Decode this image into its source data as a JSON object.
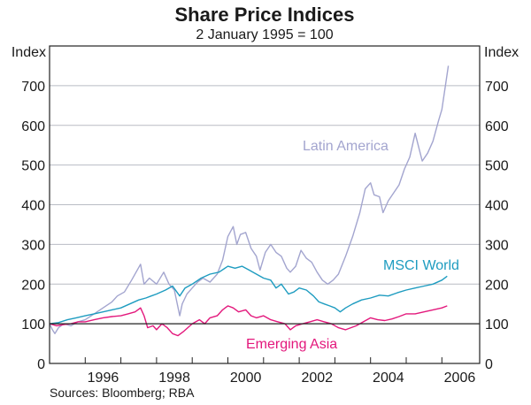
{
  "chart_data": {
    "type": "line",
    "title": "Share Price Indices",
    "subtitle": "2 January 1995 = 100",
    "ylabel_left": "Index",
    "ylabel_right": "Index",
    "xlabel": "",
    "ylim": [
      0,
      800
    ],
    "xlim": [
      1995.0,
      2006.6
    ],
    "yticks": [
      0,
      100,
      200,
      300,
      400,
      500,
      600,
      700
    ],
    "ytick_labels": [
      "0",
      "100",
      "200",
      "300",
      "400",
      "500",
      "600",
      "700"
    ],
    "xtick_positions": [
      1996,
      1997,
      1998,
      1999,
      2000,
      2001,
      2002,
      2003,
      2004,
      2005,
      2006
    ],
    "xtick_labels": [
      {
        "label": "1996",
        "at": 1996.5
      },
      {
        "label": "1998",
        "at": 1998.5
      },
      {
        "label": "2000",
        "at": 2000.5
      },
      {
        "label": "2002",
        "at": 2002.5
      },
      {
        "label": "2004",
        "at": 2004.5
      },
      {
        "label": "2006",
        "at": 2006.5
      }
    ],
    "grid": true,
    "reference_line": 100,
    "source": "Sources: Bloomberg; RBA",
    "series": [
      {
        "name": "Latin America",
        "color": "#a3a5cf",
        "x": [
          1995.0,
          1995.08,
          1995.15,
          1995.25,
          1995.4,
          1995.6,
          1995.8,
          1996.0,
          1996.25,
          1996.5,
          1996.75,
          1996.9,
          1997.1,
          1997.3,
          1997.55,
          1997.65,
          1997.8,
          1998.0,
          1998.2,
          1998.35,
          1998.5,
          1998.65,
          1998.72,
          1998.85,
          1999.0,
          1999.15,
          1999.3,
          1999.5,
          1999.7,
          1999.85,
          2000.0,
          2000.15,
          2000.25,
          2000.35,
          2000.5,
          2000.65,
          2000.8,
          2000.9,
          2001.05,
          2001.2,
          2001.35,
          2001.5,
          2001.65,
          2001.75,
          2001.9,
          2002.05,
          2002.2,
          2002.35,
          2002.5,
          2002.65,
          2002.8,
          2002.95,
          2003.1,
          2003.3,
          2003.5,
          2003.7,
          2003.85,
          2004.0,
          2004.1,
          2004.25,
          2004.35,
          2004.5,
          2004.65,
          2004.8,
          2004.95,
          2005.1,
          2005.25,
          2005.35,
          2005.45,
          2005.6,
          2005.75,
          2005.9,
          2006.0,
          2006.1,
          2006.18
        ],
        "values": [
          100,
          85,
          75,
          90,
          100,
          95,
          105,
          110,
          125,
          140,
          155,
          170,
          180,
          210,
          250,
          200,
          215,
          200,
          230,
          200,
          185,
          120,
          150,
          175,
          190,
          205,
          215,
          205,
          225,
          260,
          320,
          345,
          300,
          325,
          330,
          290,
          270,
          235,
          280,
          300,
          280,
          270,
          240,
          230,
          245,
          285,
          265,
          255,
          230,
          210,
          200,
          210,
          225,
          270,
          320,
          380,
          440,
          455,
          425,
          420,
          380,
          410,
          430,
          450,
          490,
          520,
          580,
          545,
          510,
          530,
          560,
          610,
          640,
          700,
          750
        ]
      },
      {
        "name": "MSCI World",
        "color": "#1e9cc0",
        "x": [
          1995.0,
          1995.25,
          1995.5,
          1995.75,
          1996.0,
          1996.25,
          1996.5,
          1996.75,
          1997.0,
          1997.25,
          1997.5,
          1997.7,
          1997.85,
          1998.0,
          1998.25,
          1998.45,
          1998.65,
          1998.8,
          1999.0,
          1999.25,
          1999.5,
          1999.75,
          2000.0,
          2000.2,
          2000.4,
          2000.6,
          2000.8,
          2001.0,
          2001.2,
          2001.35,
          2001.5,
          2001.7,
          2001.85,
          2002.0,
          2002.2,
          2002.4,
          2002.55,
          2002.7,
          2002.85,
          2003.0,
          2003.15,
          2003.3,
          2003.5,
          2003.75,
          2004.0,
          2004.25,
          2004.5,
          2004.75,
          2005.0,
          2005.25,
          2005.5,
          2005.75,
          2006.0,
          2006.15
        ],
        "values": [
          100,
          103,
          110,
          115,
          120,
          125,
          130,
          135,
          140,
          150,
          160,
          165,
          170,
          175,
          185,
          195,
          170,
          190,
          200,
          215,
          225,
          230,
          245,
          240,
          245,
          235,
          225,
          215,
          210,
          190,
          200,
          175,
          180,
          190,
          185,
          170,
          155,
          150,
          145,
          140,
          130,
          140,
          150,
          160,
          165,
          172,
          170,
          178,
          185,
          190,
          195,
          200,
          210,
          220
        ]
      },
      {
        "name": "Emerging Asia",
        "color": "#e3187c",
        "x": [
          1995.0,
          1995.2,
          1995.4,
          1995.6,
          1995.8,
          1996.0,
          1996.25,
          1996.5,
          1996.75,
          1997.0,
          1997.2,
          1997.4,
          1997.55,
          1997.65,
          1997.75,
          1997.9,
          1998.0,
          1998.15,
          1998.3,
          1998.45,
          1998.6,
          1998.75,
          1999.0,
          1999.2,
          1999.35,
          1999.5,
          1999.7,
          1999.85,
          2000.0,
          2000.15,
          2000.3,
          2000.5,
          2000.65,
          2000.8,
          2001.0,
          2001.2,
          2001.4,
          2001.6,
          2001.75,
          2001.9,
          2002.1,
          2002.3,
          2002.5,
          2002.7,
          2002.9,
          2003.1,
          2003.3,
          2003.45,
          2003.6,
          2003.8,
          2004.0,
          2004.2,
          2004.4,
          2004.6,
          2004.8,
          2005.0,
          2005.25,
          2005.5,
          2005.75,
          2006.0,
          2006.15
        ],
        "values": [
          100,
          95,
          98,
          100,
          105,
          105,
          110,
          115,
          118,
          120,
          125,
          130,
          140,
          120,
          90,
          95,
          85,
          100,
          90,
          75,
          70,
          80,
          100,
          110,
          100,
          115,
          120,
          135,
          145,
          140,
          130,
          135,
          120,
          115,
          120,
          110,
          105,
          100,
          85,
          95,
          100,
          105,
          110,
          105,
          100,
          90,
          85,
          90,
          95,
          105,
          115,
          110,
          108,
          112,
          118,
          125,
          125,
          130,
          135,
          140,
          145
        ]
      }
    ],
    "annotations": [
      {
        "text": "Latin America",
        "series": "Latin America"
      },
      {
        "text": "MSCI World",
        "series": "MSCI World"
      },
      {
        "text": "Emerging Asia",
        "series": "Emerging Asia"
      }
    ]
  }
}
